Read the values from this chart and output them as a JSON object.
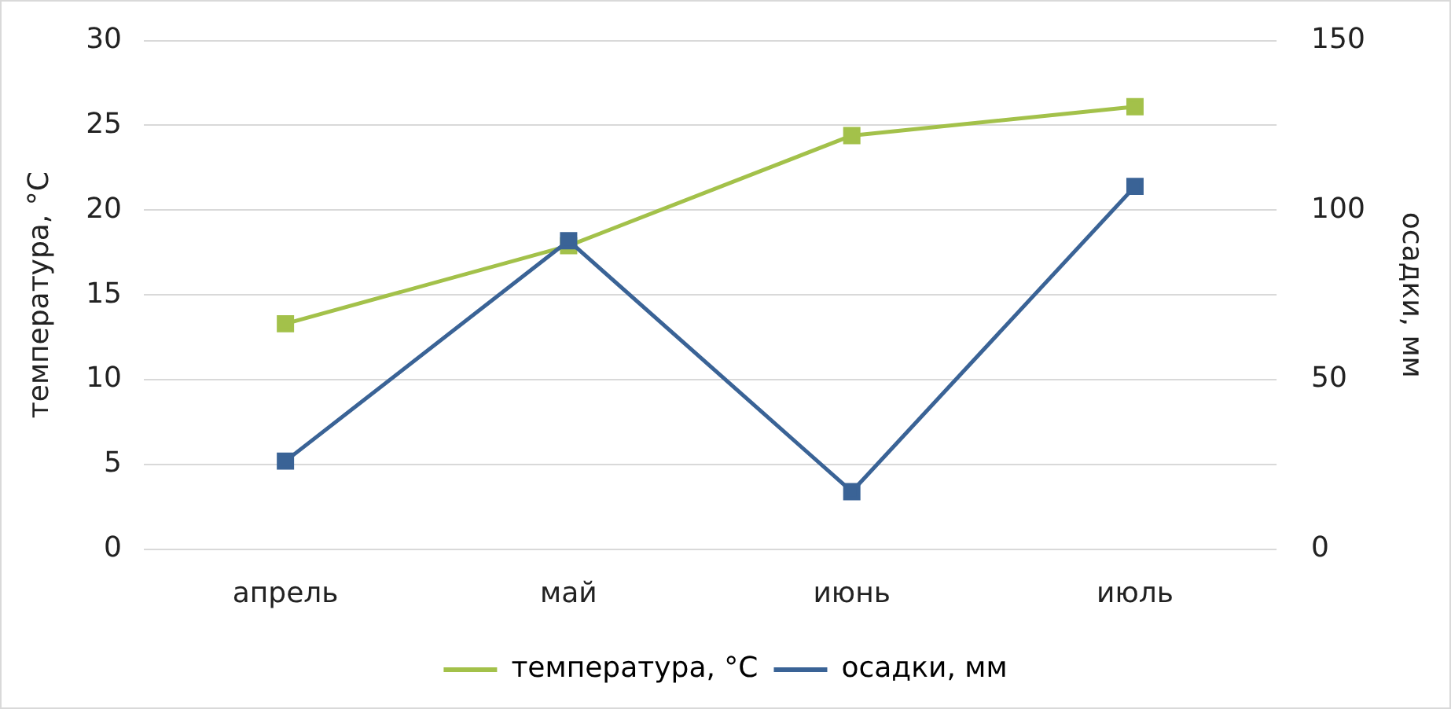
{
  "chart_data": {
    "type": "line",
    "categories": [
      "апрель",
      "май",
      "июнь",
      "июль"
    ],
    "ylabel": "температура, °C",
    "y2label": "осадки, мм",
    "series": [
      {
        "name": "температура, °C",
        "color": "#a3c14a",
        "values": [
          13.3,
          17.9,
          24.4,
          26.1
        ]
      },
      {
        "name": "осадки, мм",
        "color": "#3a6396",
        "values": [
          26,
          91,
          17,
          107
        ],
        "axis": "y2"
      }
    ],
    "ylim": [
      0,
      30
    ],
    "yticks": [
      0,
      5,
      10,
      15,
      20,
      25,
      30
    ],
    "y2lim": [
      0,
      150
    ],
    "y2ticks": [
      0,
      50,
      100,
      150
    ],
    "grid": "y",
    "legend": "bottom",
    "marker": "square",
    "line_style": "solid"
  }
}
